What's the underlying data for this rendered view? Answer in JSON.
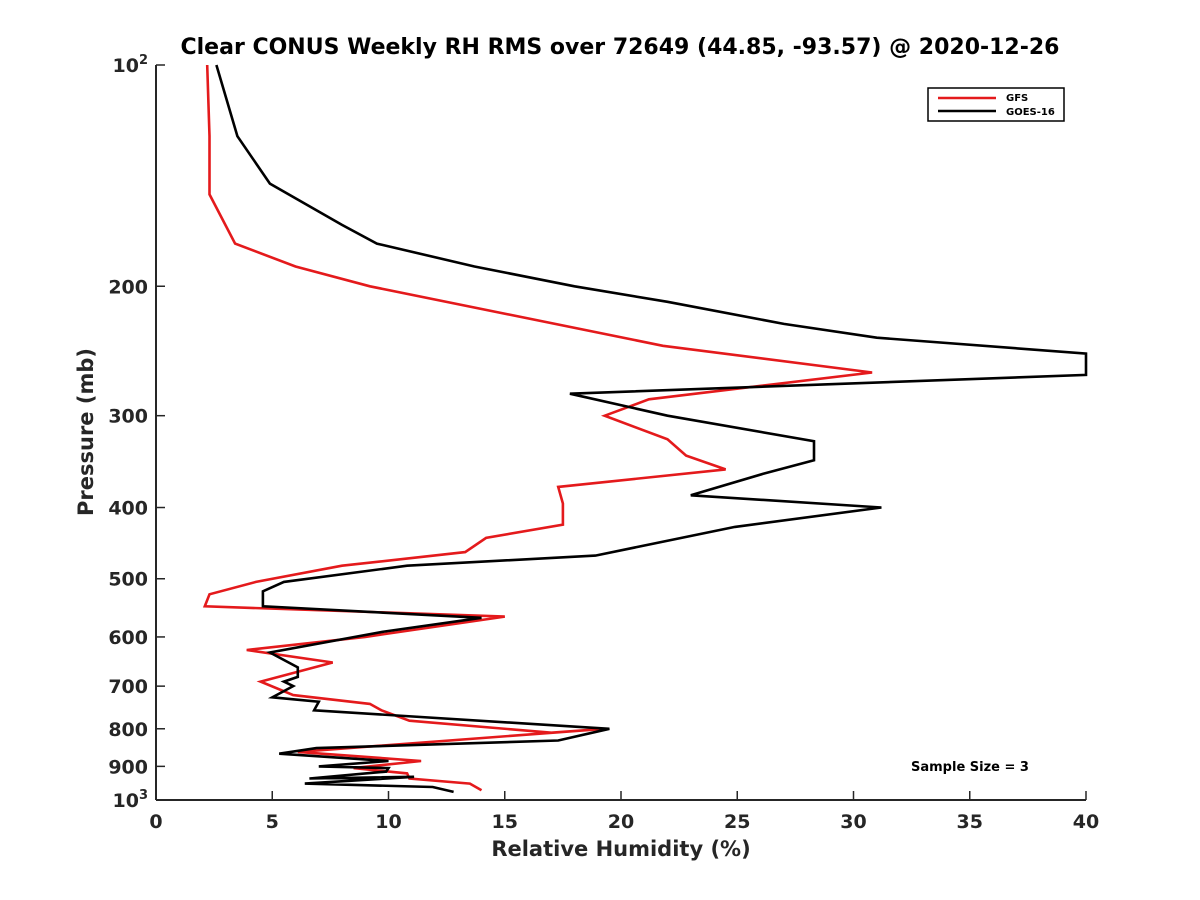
{
  "chart_data": {
    "type": "line",
    "title": "Clear CONUS Weekly RH RMS over 72649 (44.85, -93.57) @ 2020-12-26",
    "xlabel": "Relative Humidity (%)",
    "ylabel": "Pressure (mb)",
    "xlim": [
      0,
      40
    ],
    "ylim": [
      100,
      1000
    ],
    "yscale": "log",
    "y_reversed": true,
    "grid": false,
    "legend_position": "top-right",
    "annotation": "Sample Size = 3",
    "x_ticks": [
      "0",
      "5",
      "10",
      "15",
      "20",
      "25",
      "30",
      "35",
      "40"
    ],
    "x_tick_values": [
      0,
      5,
      10,
      15,
      20,
      25,
      30,
      35,
      40
    ],
    "y_ticks": [
      {
        "value": 100,
        "base": "10",
        "exp": "2"
      },
      {
        "value": 200,
        "label": "200"
      },
      {
        "value": 300,
        "label": "300"
      },
      {
        "value": 400,
        "label": "400"
      },
      {
        "value": 500,
        "label": "500"
      },
      {
        "value": 600,
        "label": "600"
      },
      {
        "value": 700,
        "label": "700"
      },
      {
        "value": 800,
        "label": "800"
      },
      {
        "value": 900,
        "label": "900"
      },
      {
        "value": 1000,
        "base": "10",
        "exp": "3"
      }
    ],
    "series": [
      {
        "name": "GFS",
        "color": "#e41a1c",
        "points": [
          [
            2.2,
            100
          ],
          [
            2.3,
            125
          ],
          [
            2.3,
            150
          ],
          [
            3.4,
            175
          ],
          [
            6.0,
            188
          ],
          [
            9.2,
            200
          ],
          [
            21.8,
            241
          ],
          [
            30.8,
            262
          ],
          [
            21.2,
            285
          ],
          [
            19.3,
            300
          ],
          [
            22.0,
            323
          ],
          [
            22.8,
            340
          ],
          [
            24.5,
            355
          ],
          [
            17.3,
            375
          ],
          [
            17.5,
            395
          ],
          [
            17.5,
            422
          ],
          [
            14.2,
            440
          ],
          [
            13.3,
            460
          ],
          [
            8.0,
            480
          ],
          [
            4.3,
            505
          ],
          [
            2.3,
            525
          ],
          [
            2.1,
            545
          ],
          [
            15.0,
            563
          ],
          [
            9.0,
            600
          ],
          [
            3.9,
            625
          ],
          [
            7.6,
            650
          ],
          [
            4.5,
            690
          ],
          [
            5.9,
            720
          ],
          [
            9.2,
            740
          ],
          [
            9.7,
            755
          ],
          [
            10.9,
            780
          ],
          [
            17.0,
            810
          ],
          [
            19.3,
            800
          ],
          [
            6.1,
            860
          ],
          [
            11.4,
            885
          ],
          [
            8.5,
            905
          ],
          [
            10.8,
            920
          ],
          [
            10.9,
            935
          ],
          [
            13.5,
            950
          ],
          [
            14.0,
            970
          ]
        ]
      },
      {
        "name": "GOES-16",
        "color": "#000000",
        "points": [
          [
            2.6,
            100
          ],
          [
            3.5,
            125
          ],
          [
            4.9,
            145
          ],
          [
            8.0,
            165
          ],
          [
            9.5,
            175
          ],
          [
            13.7,
            188
          ],
          [
            18.0,
            200
          ],
          [
            22.0,
            210
          ],
          [
            27.0,
            225
          ],
          [
            31.0,
            235
          ],
          [
            40.0,
            247
          ],
          [
            40.0,
            264
          ],
          [
            17.8,
            280
          ],
          [
            22.0,
            300
          ],
          [
            28.3,
            325
          ],
          [
            28.3,
            345
          ],
          [
            26.1,
            360
          ],
          [
            23.0,
            385
          ],
          [
            31.2,
            400
          ],
          [
            24.9,
            425
          ],
          [
            18.9,
            465
          ],
          [
            10.8,
            480
          ],
          [
            5.5,
            505
          ],
          [
            4.6,
            520
          ],
          [
            4.6,
            545
          ],
          [
            14.0,
            565
          ],
          [
            9.8,
            590
          ],
          [
            4.9,
            630
          ],
          [
            6.1,
            660
          ],
          [
            6.1,
            680
          ],
          [
            5.5,
            690
          ],
          [
            5.9,
            700
          ],
          [
            5.0,
            725
          ],
          [
            7.0,
            735
          ],
          [
            6.8,
            755
          ],
          [
            19.5,
            800
          ],
          [
            17.3,
            830
          ],
          [
            6.9,
            850
          ],
          [
            5.3,
            865
          ],
          [
            10.0,
            885
          ],
          [
            7.0,
            900
          ],
          [
            10.0,
            905
          ],
          [
            9.9,
            915
          ],
          [
            6.6,
            935
          ],
          [
            11.1,
            930
          ],
          [
            6.4,
            950
          ],
          [
            11.9,
            960
          ],
          [
            12.8,
            975
          ]
        ]
      }
    ]
  }
}
